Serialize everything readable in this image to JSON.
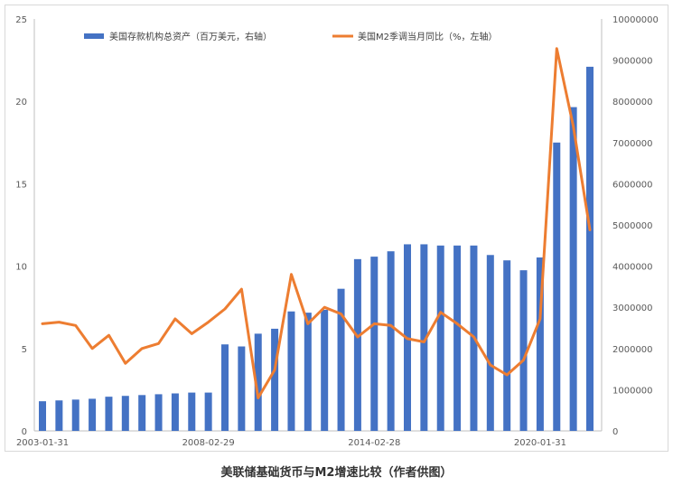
{
  "caption": "美联储基础货币与M2增速比较（作者供图）",
  "chart_data": {
    "type": "bar+line",
    "legend": {
      "placement": "top",
      "bar_label": "美国存款机构总资产（百万美元，右轴）",
      "line_label": "美国M2季调当月同比（%，左轴）"
    },
    "x_tick_labels": [
      "2003-01-31",
      "2008-02-29",
      "2014-02-28",
      "2020-01-31"
    ],
    "x_tick_index": [
      0,
      10,
      20,
      30
    ],
    "left_axis": {
      "min": 0,
      "max": 25,
      "ticks": [
        0,
        5,
        10,
        15,
        20,
        25
      ]
    },
    "right_axis": {
      "min": 0,
      "max": 10000000,
      "ticks": [
        0,
        1000000,
        2000000,
        3000000,
        4000000,
        5000000,
        6000000,
        7000000,
        8000000,
        9000000,
        10000000
      ]
    },
    "series": [
      {
        "name": "美国存款机构总资产（百万美元，右轴）",
        "type": "bar",
        "axis": "right",
        "color": "#4472c4",
        "values": [
          720000,
          740000,
          760000,
          780000,
          830000,
          850000,
          870000,
          890000,
          910000,
          930000,
          930000,
          2100000,
          2050000,
          2360000,
          2480000,
          2900000,
          2870000,
          2940000,
          3450000,
          4170000,
          4230000,
          4360000,
          4530000,
          4530000,
          4500000,
          4500000,
          4500000,
          4270000,
          4140000,
          3900000,
          4210000,
          7000000,
          7860000,
          8840000
        ]
      },
      {
        "name": "美国M2季调当月同比（%，左轴）",
        "type": "line",
        "axis": "left",
        "color": "#ed7d31",
        "values": [
          6.5,
          6.6,
          6.4,
          5.0,
          5.8,
          4.1,
          5.0,
          5.3,
          6.8,
          5.9,
          6.6,
          7.4,
          8.6,
          2.0,
          3.7,
          9.5,
          6.5,
          7.5,
          7.1,
          5.7,
          6.5,
          6.4,
          5.6,
          5.4,
          7.2,
          6.5,
          5.7,
          4.0,
          3.4,
          4.3,
          6.8,
          23.2,
          18.5,
          12.2
        ]
      }
    ],
    "grid": false
  }
}
